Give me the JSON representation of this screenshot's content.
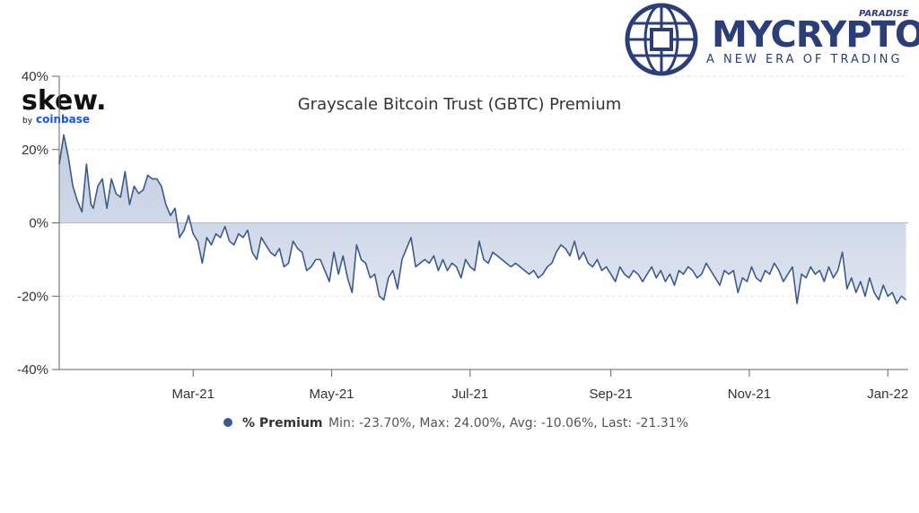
{
  "branding": {
    "skew_main": "skew.",
    "skew_by": "by",
    "skew_coinbase": "coinbase",
    "mycrypto_word": "MYCRYPTO",
    "mycrypto_paradise": "PARADISE",
    "mycrypto_tagline": "A NEW ERA OF TRADING",
    "brand_color": "#2c3e7a",
    "coinbase_color": "#1652f0"
  },
  "legend": {
    "series_name": "% Premium",
    "stats": "Min: -23.70%, Max: 24.00%, Avg: -10.06%, Last: -21.31%",
    "marker_color": "#3d5a8c"
  },
  "chart_data": {
    "type": "area",
    "title": "Grayscale Bitcoin Trust (GBTC) Premium",
    "xlabel": "",
    "ylabel": "",
    "ylim": [
      -40,
      40
    ],
    "yticks": [
      40,
      20,
      0,
      -20,
      -40
    ],
    "ytick_labels": [
      "40%",
      "20%",
      "0%",
      "-20%",
      "-40%"
    ],
    "xlim": [
      "2021-01-01",
      "2022-01-10"
    ],
    "xticks": [
      "2021-03-01",
      "2021-05-01",
      "2021-07-01",
      "2021-09-01",
      "2021-11-01",
      "2022-01-01"
    ],
    "xtick_labels": [
      "Mar-21",
      "May-21",
      "Jul-21",
      "Sep-21",
      "Nov-21",
      "Jan-22"
    ],
    "grid": true,
    "line_color": "#3d5a8c",
    "fill_color": "#b9c6dd",
    "series": [
      {
        "name": "% Premium",
        "x": [
          "2021-01-01",
          "2021-01-03",
          "2021-01-05",
          "2021-01-07",
          "2021-01-09",
          "2021-01-11",
          "2021-01-13",
          "2021-01-15",
          "2021-01-16",
          "2021-01-18",
          "2021-01-20",
          "2021-01-22",
          "2021-01-24",
          "2021-01-26",
          "2021-01-28",
          "2021-01-30",
          "2021-02-01",
          "2021-02-03",
          "2021-02-05",
          "2021-02-07",
          "2021-02-09",
          "2021-02-11",
          "2021-02-13",
          "2021-02-15",
          "2021-02-17",
          "2021-02-19",
          "2021-02-21",
          "2021-02-23",
          "2021-02-25",
          "2021-02-27",
          "2021-03-01",
          "2021-03-03",
          "2021-03-05",
          "2021-03-07",
          "2021-03-09",
          "2021-03-11",
          "2021-03-13",
          "2021-03-15",
          "2021-03-17",
          "2021-03-19",
          "2021-03-21",
          "2021-03-23",
          "2021-03-25",
          "2021-03-27",
          "2021-03-29",
          "2021-03-31",
          "2021-04-02",
          "2021-04-04",
          "2021-04-06",
          "2021-04-08",
          "2021-04-10",
          "2021-04-12",
          "2021-04-14",
          "2021-04-16",
          "2021-04-18",
          "2021-04-20",
          "2021-04-22",
          "2021-04-24",
          "2021-04-26",
          "2021-04-28",
          "2021-04-30",
          "2021-05-02",
          "2021-05-04",
          "2021-05-06",
          "2021-05-08",
          "2021-05-10",
          "2021-05-12",
          "2021-05-14",
          "2021-05-16",
          "2021-05-18",
          "2021-05-20",
          "2021-05-22",
          "2021-05-24",
          "2021-05-26",
          "2021-05-28",
          "2021-05-30",
          "2021-06-01",
          "2021-06-03",
          "2021-06-05",
          "2021-06-07",
          "2021-06-09",
          "2021-06-11",
          "2021-06-13",
          "2021-06-15",
          "2021-06-17",
          "2021-06-19",
          "2021-06-21",
          "2021-06-23",
          "2021-06-25",
          "2021-06-27",
          "2021-06-29",
          "2021-07-01",
          "2021-07-03",
          "2021-07-05",
          "2021-07-07",
          "2021-07-09",
          "2021-07-11",
          "2021-07-13",
          "2021-07-15",
          "2021-07-17",
          "2021-07-19",
          "2021-07-21",
          "2021-07-23",
          "2021-07-25",
          "2021-07-27",
          "2021-07-29",
          "2021-07-31",
          "2021-08-02",
          "2021-08-04",
          "2021-08-06",
          "2021-08-08",
          "2021-08-10",
          "2021-08-12",
          "2021-08-14",
          "2021-08-16",
          "2021-08-18",
          "2021-08-20",
          "2021-08-22",
          "2021-08-24",
          "2021-08-26",
          "2021-08-28",
          "2021-08-30",
          "2021-09-01",
          "2021-09-03",
          "2021-09-05",
          "2021-09-07",
          "2021-09-09",
          "2021-09-11",
          "2021-09-13",
          "2021-09-15",
          "2021-09-17",
          "2021-09-19",
          "2021-09-21",
          "2021-09-23",
          "2021-09-25",
          "2021-09-27",
          "2021-09-29",
          "2021-10-01",
          "2021-10-03",
          "2021-10-05",
          "2021-10-07",
          "2021-10-09",
          "2021-10-11",
          "2021-10-13",
          "2021-10-15",
          "2021-10-17",
          "2021-10-19",
          "2021-10-21",
          "2021-10-23",
          "2021-10-25",
          "2021-10-27",
          "2021-10-29",
          "2021-10-31",
          "2021-11-02",
          "2021-11-04",
          "2021-11-06",
          "2021-11-08",
          "2021-11-10",
          "2021-11-12",
          "2021-11-14",
          "2021-11-16",
          "2021-11-18",
          "2021-11-20",
          "2021-11-22",
          "2021-11-24",
          "2021-11-26",
          "2021-11-28",
          "2021-11-30",
          "2021-12-02",
          "2021-12-04",
          "2021-12-06",
          "2021-12-08",
          "2021-12-10",
          "2021-12-12",
          "2021-12-14",
          "2021-12-16",
          "2021-12-18",
          "2021-12-20",
          "2021-12-22",
          "2021-12-24",
          "2021-12-26",
          "2021-12-28",
          "2021-12-30",
          "2022-01-01",
          "2022-01-03",
          "2022-01-05",
          "2022-01-07",
          "2022-01-09"
        ],
        "values": [
          16,
          24,
          18,
          10,
          6,
          3,
          16,
          5,
          4,
          10,
          12,
          4,
          12,
          8,
          7,
          14,
          5,
          10,
          8,
          9,
          13,
          12,
          12,
          10,
          5,
          2,
          4,
          -4,
          -2,
          2,
          -3,
          -5,
          -11,
          -4,
          -6,
          -3,
          -4,
          -1,
          -5,
          -6,
          -3,
          -4,
          -2,
          -8,
          -10,
          -4,
          -6,
          -8,
          -9,
          -7,
          -12,
          -11,
          -5,
          -7,
          -8,
          -13,
          -12,
          -10,
          -10,
          -13,
          -16,
          -8,
          -14,
          -9,
          -15,
          -19,
          -6,
          -10,
          -11,
          -15,
          -14,
          -20,
          -21,
          -15,
          -13,
          -18,
          -10,
          -7,
          -4,
          -12,
          -11,
          -10,
          -11,
          -9,
          -13,
          -10,
          -13,
          -11,
          -12,
          -15,
          -10,
          -12,
          -13,
          -5,
          -10,
          -11,
          -8,
          -9,
          -10,
          -11,
          -12,
          -11,
          -12,
          -13,
          -14,
          -13,
          -15,
          -14,
          -12,
          -11,
          -8,
          -6,
          -7,
          -9,
          -5,
          -10,
          -8,
          -11,
          -12,
          -10,
          -13,
          -12,
          -14,
          -16,
          -12,
          -14,
          -15,
          -13,
          -14,
          -16,
          -14,
          -12,
          -15,
          -13,
          -16,
          -14,
          -17,
          -13,
          -14,
          -12,
          -13,
          -15,
          -14,
          -11,
          -13,
          -15,
          -17,
          -13,
          -14,
          -13,
          -19,
          -15,
          -16,
          -12,
          -15,
          -16,
          -13,
          -14,
          -11,
          -13,
          -16,
          -14,
          -12,
          -22,
          -14,
          -15,
          -12,
          -14,
          -13,
          -16,
          -12,
          -15,
          -13,
          -8,
          -18,
          -15,
          -19,
          -16,
          -20,
          -15,
          -19,
          -21,
          -17,
          -20,
          -19,
          -22,
          -20,
          -21
        ]
      }
    ]
  }
}
